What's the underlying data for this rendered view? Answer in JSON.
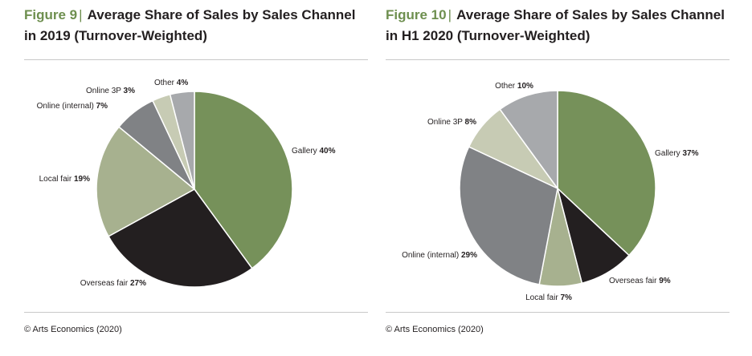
{
  "chart_data": [
    {
      "type": "pie",
      "figure_label": "Figure 9",
      "title": "Average Share of Sales by Sales Channel in 2019 (Turnover-Weighted)",
      "title_line1": "Average Share of Sales by Sales Channel",
      "title_line2": "in 2019 (Turnover-Weighted)",
      "slices": [
        {
          "label": "Gallery",
          "value": 40,
          "value_text": "40%",
          "color": "#76915a"
        },
        {
          "label": "Overseas fair",
          "value": 27,
          "value_text": "27%",
          "color": "#231f20"
        },
        {
          "label": "Local fair",
          "value": 19,
          "value_text": "19%",
          "color": "#a7b18f"
        },
        {
          "label": "Online (internal)",
          "value": 7,
          "value_text": "7%",
          "color": "#808285"
        },
        {
          "label": "Online 3P",
          "value": 3,
          "value_text": "3%",
          "color": "#c7cbb4"
        },
        {
          "label": "Other",
          "value": 4,
          "value_text": "4%",
          "color": "#a7a9ac"
        }
      ],
      "source": "© Arts Economics (2020)"
    },
    {
      "type": "pie",
      "figure_label": "Figure 10",
      "title": "Average Share of Sales by Sales Channel in H1 2020 (Turnover-Weighted)",
      "title_line1": "Average Share of Sales by Sales Channel",
      "title_line2": "in H1 2020 (Turnover-Weighted)",
      "slices": [
        {
          "label": "Gallery",
          "value": 37,
          "value_text": "37%",
          "color": "#76915a"
        },
        {
          "label": "Overseas fair",
          "value": 9,
          "value_text": "9%",
          "color": "#231f20"
        },
        {
          "label": "Local fair",
          "value": 7,
          "value_text": "7%",
          "color": "#a7b18f"
        },
        {
          "label": "Online (internal)",
          "value": 29,
          "value_text": "29%",
          "color": "#808285"
        },
        {
          "label": "Online 3P",
          "value": 8,
          "value_text": "8%",
          "color": "#c7cbb4"
        },
        {
          "label": "Other",
          "value": 10,
          "value_text": "10%",
          "color": "#a7a9ac"
        }
      ],
      "source": "© Arts Economics (2020)"
    }
  ]
}
